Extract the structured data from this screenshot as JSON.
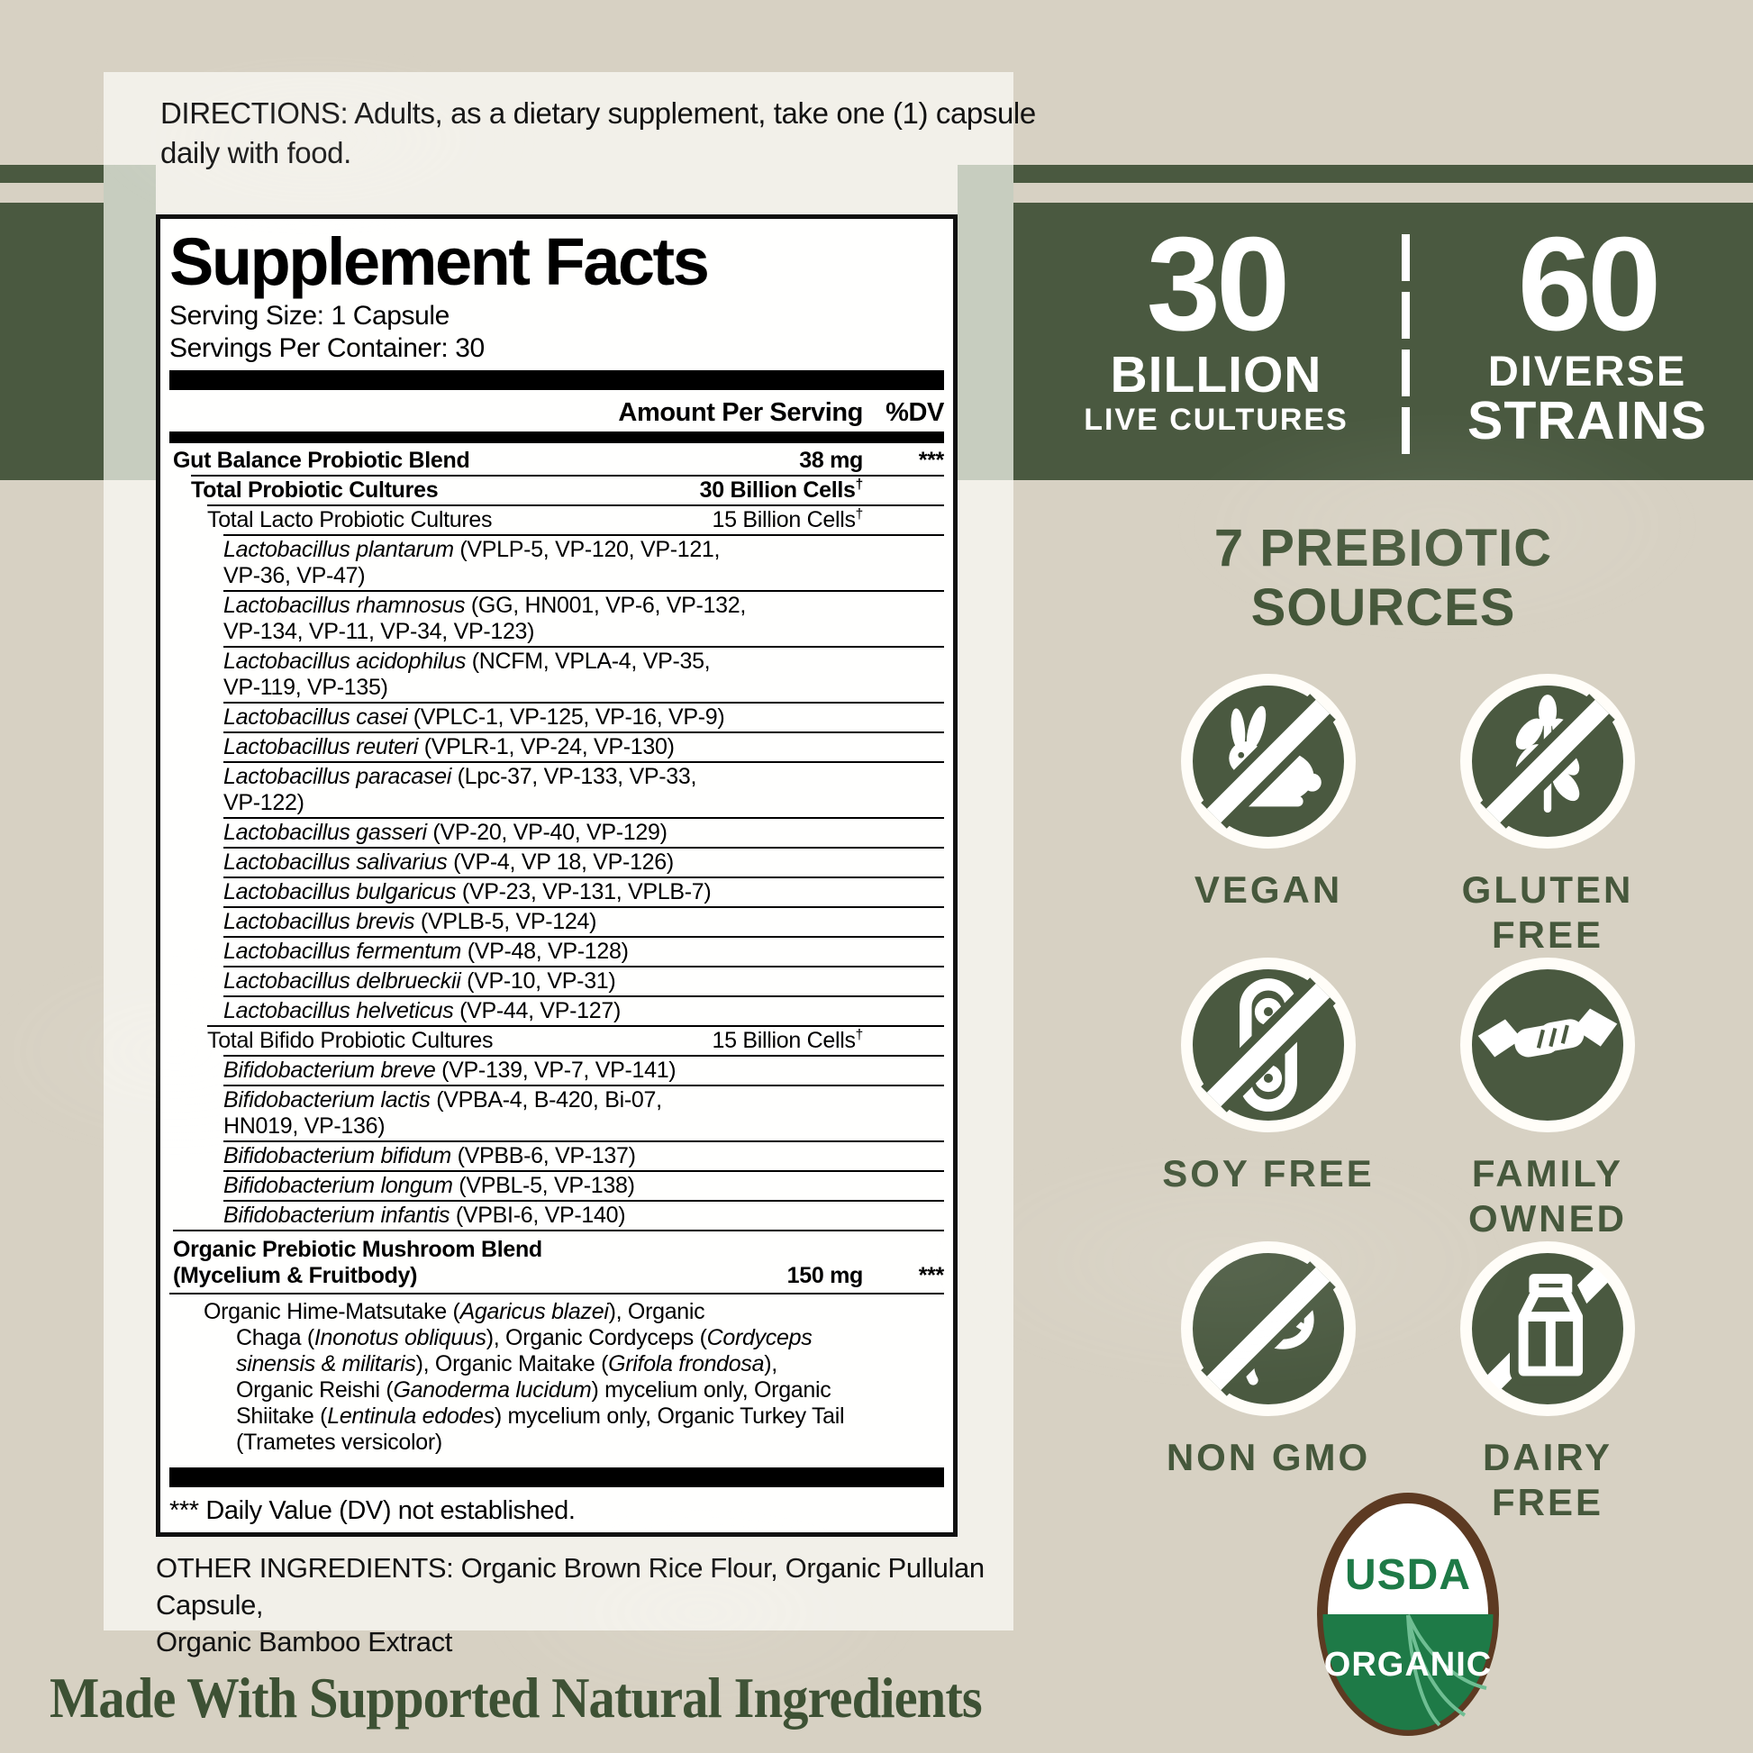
{
  "directions_lines": [
    "DIRECTIONS: Adults, as a dietary supplement, take one (1) capsule",
    "daily with food."
  ],
  "supplement_facts": {
    "title": "Supplement Facts",
    "serving_size": "Serving Size: 1 Capsule",
    "servings_per_container": "Servings Per Container: 30",
    "col_amount": "Amount Per Serving",
    "col_dv": "%DV",
    "rows": [
      {
        "indent": 0,
        "bold": true,
        "first": true,
        "lines": [
          [
            {
              "t": "Gut Balance Probiotic Blend"
            }
          ]
        ],
        "amount": "38 mg",
        "amount_bold": true,
        "dv": "***"
      },
      {
        "indent": 1,
        "bold": true,
        "lines": [
          [
            {
              "t": "Total Probiotic Cultures"
            }
          ]
        ],
        "amount": "30 Billion Cells",
        "dagger": true,
        "amount_bold": true
      },
      {
        "indent": 2,
        "lines": [
          [
            {
              "t": "Total Lacto Probiotic Cultures"
            }
          ]
        ],
        "amount": "15 Billion Cells",
        "dagger": true
      },
      {
        "indent": 3,
        "lines": [
          [
            {
              "t": "Lactobacillus plantarum",
              "i": true
            },
            {
              "t": " (VPLP-5, VP-120, VP-121,"
            }
          ],
          [
            {
              "t": "VP-36, VP-47)"
            }
          ]
        ]
      },
      {
        "indent": 3,
        "lines": [
          [
            {
              "t": "Lactobacillus rhamnosus",
              "i": true
            },
            {
              "t": " (GG, HN001, VP-6, VP-132,"
            }
          ],
          [
            {
              "t": "VP-134, VP-11, VP-34, VP-123)"
            }
          ]
        ]
      },
      {
        "indent": 3,
        "lines": [
          [
            {
              "t": "Lactobacillus acidophilus",
              "i": true
            },
            {
              "t": " (NCFM, VPLA-4, VP-35,"
            }
          ],
          [
            {
              "t": "VP-119, VP-135)"
            }
          ]
        ]
      },
      {
        "indent": 3,
        "lines": [
          [
            {
              "t": "Lactobacillus casei",
              "i": true
            },
            {
              "t": " (VPLC-1, VP-125, VP-16, VP-9)"
            }
          ]
        ]
      },
      {
        "indent": 3,
        "lines": [
          [
            {
              "t": "Lactobacillus reuteri",
              "i": true
            },
            {
              "t": " (VPLR-1, VP-24, VP-130)"
            }
          ]
        ]
      },
      {
        "indent": 3,
        "lines": [
          [
            {
              "t": "Lactobacillus paracasei",
              "i": true
            },
            {
              "t": " (Lpc-37, VP-133, VP-33,"
            }
          ],
          [
            {
              "t": "VP-122)"
            }
          ]
        ]
      },
      {
        "indent": 3,
        "lines": [
          [
            {
              "t": "Lactobacillus gasseri",
              "i": true
            },
            {
              "t": " (VP-20, VP-40, VP-129)"
            }
          ]
        ]
      },
      {
        "indent": 3,
        "lines": [
          [
            {
              "t": "Lactobacillus salivarius",
              "i": true
            },
            {
              "t": " (VP-4, VP 18, VP-126)"
            }
          ]
        ]
      },
      {
        "indent": 3,
        "lines": [
          [
            {
              "t": "Lactobacillus bulgaricus",
              "i": true
            },
            {
              "t": " (VP-23, VP-131, VPLB-7)"
            }
          ]
        ]
      },
      {
        "indent": 3,
        "lines": [
          [
            {
              "t": "Lactobacillus brevis",
              "i": true
            },
            {
              "t": " (VPLB-5, VP-124)"
            }
          ]
        ]
      },
      {
        "indent": 3,
        "lines": [
          [
            {
              "t": "Lactobacillus fermentum",
              "i": true
            },
            {
              "t": " (VP-48, VP-128)"
            }
          ]
        ]
      },
      {
        "indent": 3,
        "lines": [
          [
            {
              "t": "Lactobacillus delbrueckii",
              "i": true
            },
            {
              "t": " (VP-10, VP-31)"
            }
          ]
        ]
      },
      {
        "indent": 3,
        "lines": [
          [
            {
              "t": "Lactobacillus helveticus",
              "i": true
            },
            {
              "t": " (VP-44, VP-127)"
            }
          ]
        ]
      },
      {
        "indent": 2,
        "lines": [
          [
            {
              "t": "Total Bifido Probiotic Cultures"
            }
          ]
        ],
        "amount": "15 Billion Cells",
        "dagger": true
      },
      {
        "indent": 3,
        "lines": [
          [
            {
              "t": "Bifidobacterium breve",
              "i": true
            },
            {
              "t": " (VP-139, VP-7, VP-141)"
            }
          ]
        ]
      },
      {
        "indent": 3,
        "lines": [
          [
            {
              "t": "Bifidobacterium lactis",
              "i": true
            },
            {
              "t": " (VPBA-4, B-420, Bi-07,"
            }
          ],
          [
            {
              "t": "HN019, VP-136)"
            }
          ]
        ]
      },
      {
        "indent": 3,
        "lines": [
          [
            {
              "t": "Bifidobacterium bifidum",
              "i": true
            },
            {
              "t": " (VPBB-6, VP-137)"
            }
          ]
        ]
      },
      {
        "indent": 3,
        "lines": [
          [
            {
              "t": "Bifidobacterium longum",
              "i": true
            },
            {
              "t": " (VPBL-5, VP-138)"
            }
          ]
        ]
      },
      {
        "indent": 3,
        "lines": [
          [
            {
              "t": "Bifidobacterium infantis",
              "i": true
            },
            {
              "t": " (VPBI-6, VP-140)"
            }
          ]
        ]
      },
      {
        "indent": 0,
        "bold": true,
        "pad_big": true,
        "align_end": true,
        "lines": [
          [
            {
              "t": "Organic Prebiotic Mushroom Blend"
            }
          ],
          [
            {
              "t": "(Mycelium & Fruitbody)"
            }
          ]
        ],
        "amount": "150 mg",
        "amount_bold": true,
        "dv": "***"
      }
    ],
    "mushroom_description_lines": [
      [
        {
          "t": "Organic Hime-Matsutake ("
        },
        {
          "t": "Agaricus blazei",
          "i": true
        },
        {
          "t": "), Organic"
        }
      ],
      [
        {
          "t": "Chaga ("
        },
        {
          "t": "Inonotus obliquus",
          "i": true
        },
        {
          "t": "), Organic Cordyceps ("
        },
        {
          "t": "Cordyceps",
          "i": true
        }
      ],
      [
        {
          "t": "sinensis & militaris",
          "i": true
        },
        {
          "t": "), Organic Maitake ("
        },
        {
          "t": "Grifola frondosa",
          "i": true
        },
        {
          "t": "),"
        }
      ],
      [
        {
          "t": "Organic Reishi ("
        },
        {
          "t": "Ganoderma lucidum",
          "i": true
        },
        {
          "t": ") mycelium only, Organic"
        }
      ],
      [
        {
          "t": "Shiitake ("
        },
        {
          "t": "Lentinula edodes",
          "i": true
        },
        {
          "t": ") mycelium only, Organic Turkey Tail"
        }
      ],
      [
        {
          "t": "(Trametes versicolor)"
        }
      ]
    ],
    "footnote": "*** Daily Value (DV) not established."
  },
  "other_ingredients_lines": [
    "OTHER INGREDIENTS: Organic Brown Rice Flour, Organic Pullulan Capsule,",
    "Organic Bamboo Extract"
  ],
  "banner": {
    "left_number": "30",
    "left_label": "BILLION",
    "left_sub": "LIVE CULTURES",
    "right_number": "60",
    "right_label": "DIVERSE",
    "right_sub": "STRAINS"
  },
  "prebiotic_heading_lines": [
    "7 PREBIOTIC",
    "SOURCES"
  ],
  "badges": [
    {
      "name": "vegan",
      "icon": "rabbit",
      "slash": true,
      "label_lines": [
        "VEGAN"
      ]
    },
    {
      "name": "gluten-free",
      "icon": "wheat",
      "slash": true,
      "label_lines": [
        "GLUTEN",
        "FREE"
      ]
    },
    {
      "name": "soy-free",
      "icon": "soybean",
      "slash": true,
      "label_lines": [
        "SOY FREE"
      ]
    },
    {
      "name": "family-owned",
      "icon": "handshake",
      "slash": false,
      "label_lines": [
        "FAMILY",
        "OWNED"
      ]
    },
    {
      "name": "non-gmo",
      "icon": "dna",
      "slash": true,
      "label_lines": [
        "NON GMO"
      ]
    },
    {
      "name": "dairy-free",
      "icon": "milk-carton",
      "slash": true,
      "label_lines": [
        "DAIRY",
        "FREE"
      ]
    }
  ],
  "usda": {
    "top": "USDA",
    "bottom": "ORGANIC"
  },
  "footer": "Made With Supported Natural Ingredients",
  "colors": {
    "background": "#d7d1c3",
    "card": "#f2f0e9",
    "green": "#4a5940",
    "sage": "#c7cdbf",
    "text_green": "#46583c",
    "footer_green": "#3d5134",
    "usda_green": "#1e7a47",
    "usda_brown": "#5d3a22",
    "black": "#111111"
  }
}
